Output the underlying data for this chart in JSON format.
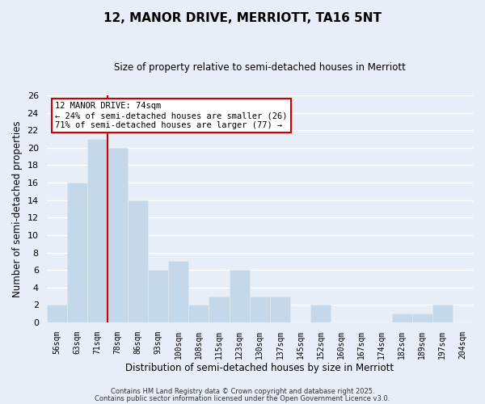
{
  "title": "12, MANOR DRIVE, MERRIOTT, TA16 5NT",
  "subtitle": "Size of property relative to semi-detached houses in Merriott",
  "xlabel": "Distribution of semi-detached houses by size in Merriott",
  "ylabel": "Number of semi-detached properties",
  "bins": [
    "56sqm",
    "63sqm",
    "71sqm",
    "78sqm",
    "86sqm",
    "93sqm",
    "100sqm",
    "108sqm",
    "115sqm",
    "123sqm",
    "130sqm",
    "137sqm",
    "145sqm",
    "152sqm",
    "160sqm",
    "167sqm",
    "174sqm",
    "182sqm",
    "189sqm",
    "197sqm",
    "204sqm"
  ],
  "values": [
    2,
    16,
    21,
    20,
    14,
    6,
    7,
    2,
    3,
    6,
    3,
    3,
    0,
    2,
    0,
    0,
    0,
    1,
    1,
    2,
    0
  ],
  "bar_color": "#c5d8ea",
  "bar_edge_color": "#dce8f0",
  "property_line_bin_idx": 2,
  "property_label": "12 MANOR DRIVE: 74sqm",
  "pct_smaller": "24% of semi-detached houses are smaller (26)",
  "pct_larger": "71% of semi-detached houses are larger (77)",
  "line_color": "#cc0000",
  "ylim": [
    0,
    26
  ],
  "yticks": [
    0,
    2,
    4,
    6,
    8,
    10,
    12,
    14,
    16,
    18,
    20,
    22,
    24,
    26
  ],
  "background_color": "#e8eef8",
  "grid_color": "#ffffff",
  "footer1": "Contains HM Land Registry data © Crown copyright and database right 2025.",
  "footer2": "Contains public sector information licensed under the Open Government Licence v3.0."
}
